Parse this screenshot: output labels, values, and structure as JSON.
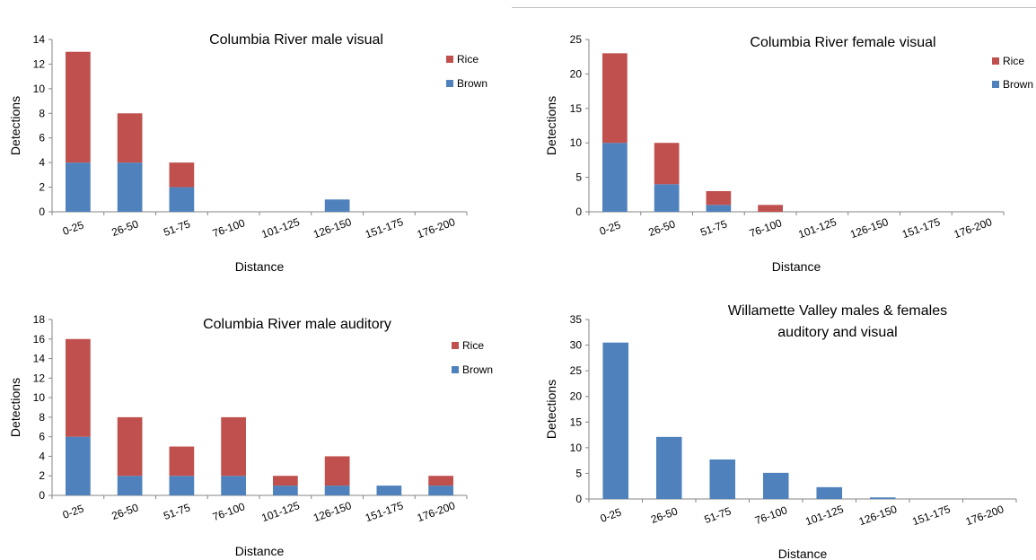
{
  "chart_data": [
    {
      "type": "bar",
      "stacked": true,
      "title": [
        "Columbia River male visual"
      ],
      "xlabel": "Distance",
      "ylabel": "Detections",
      "categories": [
        "0-25",
        "26-50",
        "51-75",
        "76-100",
        "101-125",
        "126-150",
        "151-175",
        "176-200"
      ],
      "ylim": [
        0,
        14
      ],
      "yticks": [
        0,
        2,
        4,
        6,
        8,
        10,
        12,
        14
      ],
      "series": [
        {
          "name": "Brown",
          "color": "#4f81bd",
          "values": [
            4,
            4,
            2,
            0,
            0,
            1,
            0,
            0
          ]
        },
        {
          "name": "Rice",
          "color": "#c0504d",
          "values": [
            9,
            4,
            2,
            0,
            0,
            0,
            0,
            0
          ]
        }
      ],
      "legend": "right"
    },
    {
      "type": "bar",
      "stacked": true,
      "title": [
        "Columbia River female visual"
      ],
      "xlabel": "Distance",
      "ylabel": "Detections",
      "categories": [
        "0-25",
        "26-50",
        "51-75",
        "76-100",
        "101-125",
        "126-150",
        "151-175",
        "176-200"
      ],
      "ylim": [
        0,
        25
      ],
      "yticks": [
        0,
        5,
        10,
        15,
        20,
        25
      ],
      "series": [
        {
          "name": "Brown",
          "color": "#4f81bd",
          "values": [
            10,
            4,
            1,
            0,
            0,
            0,
            0,
            0
          ]
        },
        {
          "name": "Rice",
          "color": "#c0504d",
          "values": [
            13,
            6,
            2,
            1,
            0,
            0,
            0,
            0
          ]
        }
      ],
      "legend": "right"
    },
    {
      "type": "bar",
      "stacked": true,
      "title": [
        "Columbia River male auditory"
      ],
      "xlabel": "Distance",
      "ylabel": "Detections",
      "categories": [
        "0-25",
        "26-50",
        "51-75",
        "76-100",
        "101-125",
        "126-150",
        "151-175",
        "176-200"
      ],
      "ylim": [
        0,
        18
      ],
      "yticks": [
        0,
        2,
        4,
        6,
        8,
        10,
        12,
        14,
        16,
        18
      ],
      "series": [
        {
          "name": "Brown",
          "color": "#4f81bd",
          "values": [
            6,
            2,
            2,
            2,
            1,
            1,
            1,
            1
          ]
        },
        {
          "name": "Rice",
          "color": "#c0504d",
          "values": [
            10,
            6,
            3,
            6,
            1,
            3,
            0,
            1
          ]
        }
      ],
      "legend": "right"
    },
    {
      "type": "bar",
      "stacked": false,
      "title": [
        "Willamette Valley males & females",
        "auditory and visual"
      ],
      "xlabel": "Distance",
      "ylabel": "Detections",
      "categories": [
        "0-25",
        "26-50",
        "51-75",
        "76-100",
        "101-125",
        "126-150",
        "151-175",
        "176-200"
      ],
      "ylim": [
        0,
        35
      ],
      "yticks": [
        0,
        5,
        10,
        15,
        20,
        25,
        30,
        35
      ],
      "series": [
        {
          "color": "#4f81bd",
          "values": [
            30.5,
            12.1,
            7.7,
            5.1,
            2.3,
            0.3,
            0,
            0
          ]
        }
      ],
      "legend": "none"
    }
  ]
}
